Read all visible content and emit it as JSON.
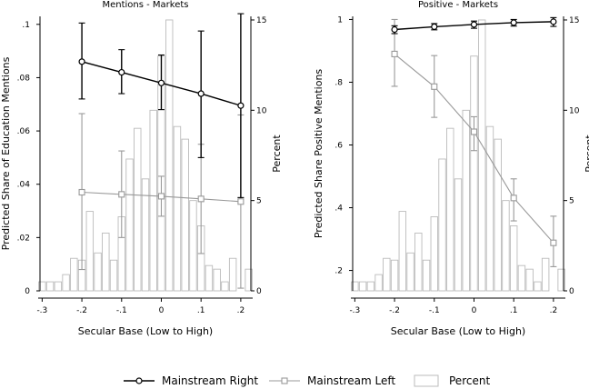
{
  "chart_data": [
    {
      "type": "bar+line",
      "title": "Mentions - Markets",
      "xlabel": "Secular Base (Low to High)",
      "ylabel": "Predicted Share of Education Mentions",
      "y2label": "Percent",
      "xlim": [
        -0.31,
        0.23
      ],
      "ylim": [
        0,
        0.103
      ],
      "y2lim": [
        0,
        15.2
      ],
      "xticks": [
        -0.3,
        -0.2,
        -0.1,
        0,
        0.1,
        0.2
      ],
      "xtick_labels": [
        "-.3",
        "-.2",
        "-.1",
        "0",
        ".1",
        ".2"
      ],
      "yticks": [
        0,
        0.02,
        0.04,
        0.06,
        0.08,
        0.1
      ],
      "ytick_labels": [
        "0",
        ".02",
        ".04",
        ".06",
        ".08",
        ".1"
      ],
      "y2ticks": [
        0,
        5,
        10,
        15
      ],
      "y2tick_labels": [
        "0",
        "5",
        "10",
        "15"
      ],
      "histogram": {
        "bin_width": 0.02,
        "x": [
          -0.3,
          -0.28,
          -0.26,
          -0.24,
          -0.22,
          -0.2,
          -0.18,
          -0.16,
          -0.14,
          -0.12,
          -0.1,
          -0.08,
          -0.06,
          -0.04,
          -0.02,
          0.0,
          0.02,
          0.04,
          0.06,
          0.08,
          0.1,
          0.12,
          0.14,
          0.16,
          0.18,
          0.22
        ],
        "values": [
          0.5,
          0.5,
          0.5,
          0.9,
          1.8,
          1.7,
          4.4,
          2.1,
          3.2,
          1.7,
          4.1,
          7.3,
          9.0,
          6.2,
          10.0,
          13.0,
          15.0,
          9.1,
          8.4,
          5.0,
          3.6,
          1.4,
          1.2,
          0.5,
          1.8,
          1.2
        ]
      },
      "series": [
        {
          "name": "Mainstream Right",
          "x": [
            -0.2,
            -0.1,
            0,
            0.1,
            0.2
          ],
          "values": [
            0.086,
            0.082,
            0.078,
            0.074,
            0.0695
          ],
          "ci_low": [
            0.072,
            0.074,
            0.068,
            0.05,
            0.035
          ],
          "ci_high": [
            0.1005,
            0.0905,
            0.0885,
            0.0975,
            0.104
          ]
        },
        {
          "name": "Mainstream Left",
          "x": [
            -0.2,
            -0.1,
            0,
            0.1,
            0.2
          ],
          "values": [
            0.037,
            0.0362,
            0.0355,
            0.0345,
            0.0335
          ],
          "ci_low": [
            0.008,
            0.02,
            0.028,
            0.014,
            0.001
          ],
          "ci_high": [
            0.0665,
            0.0525,
            0.043,
            0.055,
            0.066
          ]
        }
      ]
    },
    {
      "type": "bar+line",
      "title": "Positive - Markets",
      "xlabel": "Secular Base (Low to High)",
      "ylabel": "Predicted Share Positive Mentions",
      "y2label": "Percent",
      "xlim": [
        -0.31,
        0.23
      ],
      "ylim": [
        0.135,
        1.01
      ],
      "y2lim": [
        0,
        15.2
      ],
      "xticks": [
        -0.3,
        -0.2,
        -0.1,
        0,
        0.1,
        0.2
      ],
      "xtick_labels": [
        "-.3",
        "-.2",
        "-.1",
        "0",
        ".1",
        ".2"
      ],
      "yticks": [
        0.2,
        0.4,
        0.6,
        0.8,
        1.0
      ],
      "ytick_labels": [
        ".2",
        ".4",
        ".6",
        ".8",
        "1"
      ],
      "y2ticks": [
        0,
        5,
        10,
        15
      ],
      "y2tick_labels": [
        "0",
        "5",
        "10",
        "15"
      ],
      "histogram": {
        "bin_width": 0.02,
        "x": [
          -0.3,
          -0.28,
          -0.26,
          -0.24,
          -0.22,
          -0.2,
          -0.18,
          -0.16,
          -0.14,
          -0.12,
          -0.1,
          -0.08,
          -0.06,
          -0.04,
          -0.02,
          0.0,
          0.02,
          0.04,
          0.06,
          0.08,
          0.1,
          0.12,
          0.14,
          0.16,
          0.18,
          0.22
        ],
        "values": [
          0.5,
          0.5,
          0.5,
          0.9,
          1.8,
          1.7,
          4.4,
          2.1,
          3.2,
          1.7,
          4.1,
          7.3,
          9.0,
          6.2,
          10.0,
          13.0,
          15.0,
          9.1,
          8.4,
          5.0,
          3.6,
          1.4,
          1.2,
          0.5,
          1.8,
          1.2
        ]
      },
      "series": [
        {
          "name": "Mainstream Right",
          "x": [
            -0.2,
            -0.1,
            0,
            0.1,
            0.2
          ],
          "values": [
            0.968,
            0.977,
            0.984,
            0.99,
            0.993
          ],
          "ci_low": [
            0.955,
            0.967,
            0.972,
            0.979,
            0.978
          ],
          "ci_high": [
            0.98,
            0.987,
            0.995,
            1.0,
            1.006
          ]
        },
        {
          "name": "Mainstream Left",
          "x": [
            -0.2,
            -0.1,
            0,
            0.1,
            0.2
          ],
          "values": [
            0.89,
            0.786,
            0.642,
            0.431,
            0.288
          ],
          "ci_low": [
            0.787,
            0.688,
            0.582,
            0.358,
            0.212
          ],
          "ci_high": [
            1.0,
            0.885,
            0.69,
            0.492,
            0.373
          ]
        }
      ]
    }
  ],
  "legend": {
    "items": [
      {
        "label": "Mainstream Right",
        "marker": "circle",
        "color": "#000000"
      },
      {
        "label": "Mainstream Left",
        "marker": "square",
        "color": "#999999"
      },
      {
        "label": "Percent",
        "marker": "bar",
        "color": "#bbbbbb"
      }
    ]
  },
  "colors": {
    "right": "#000000",
    "left": "#999999",
    "bar_stroke": "#bbbbbb",
    "axis": "#000000"
  }
}
